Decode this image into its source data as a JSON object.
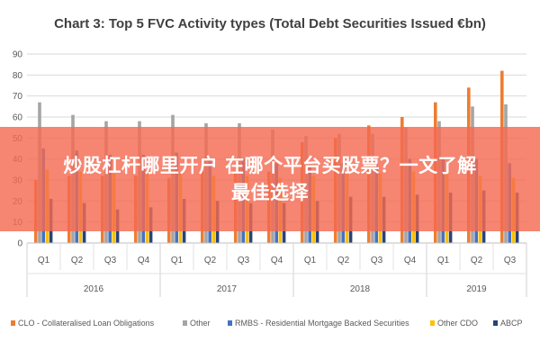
{
  "chart_data": {
    "type": "bar",
    "title": "Chart 3: Top 5 FVC Activity types (Total Debt Securities Issued €bn)",
    "xlabel": "",
    "ylabel": "",
    "ylim": [
      0,
      90
    ],
    "yticks": [
      0,
      10,
      20,
      30,
      40,
      50,
      60,
      70,
      80,
      90
    ],
    "grid": true,
    "legend_position": "bottom",
    "groups": [
      {
        "label": "2016",
        "categories": [
          "Q1",
          "Q2",
          "Q3",
          "Q4"
        ]
      },
      {
        "label": "2017",
        "categories": [
          "Q1",
          "Q2",
          "Q3",
          "Q4"
        ]
      },
      {
        "label": "2018",
        "categories": [
          "Q1",
          "Q2",
          "Q3",
          "Q4"
        ]
      },
      {
        "label": "2019",
        "categories": [
          "Q1",
          "Q2",
          "Q3"
        ]
      }
    ],
    "series": [
      {
        "name": "CLO - Collateralised Loan Obligations",
        "color": "#ED7D31",
        "values": [
          30,
          32,
          32,
          32,
          31,
          34,
          34,
          34,
          48,
          50,
          56,
          60,
          67,
          74,
          82
        ]
      },
      {
        "name": "Other",
        "color": "#A5A5A5",
        "values": [
          67,
          61,
          58,
          58,
          61,
          57,
          57,
          54,
          51,
          52,
          52,
          55,
          58,
          65,
          66
        ]
      },
      {
        "name": "RMBS - Residential Mortgage Backed Securities",
        "color": "#4472C4",
        "values": [
          45,
          44,
          42,
          42,
          43,
          40,
          40,
          38,
          37,
          38,
          38,
          40,
          41,
          40,
          38
        ]
      },
      {
        "name": "Other CDO",
        "color": "#FFC000",
        "values": [
          35,
          34,
          33,
          33,
          34,
          32,
          32,
          31,
          32,
          33,
          33,
          34,
          34,
          32,
          31
        ]
      },
      {
        "name": "ABCP",
        "color": "#264478",
        "values": [
          21,
          19,
          16,
          17,
          21,
          20,
          19,
          19,
          20,
          22,
          22,
          23,
          24,
          25,
          24
        ]
      }
    ]
  },
  "overlay": {
    "line1": "炒股杠杆哪里开户 在哪个平台买股票？一文了解",
    "line2": "最佳选择"
  }
}
